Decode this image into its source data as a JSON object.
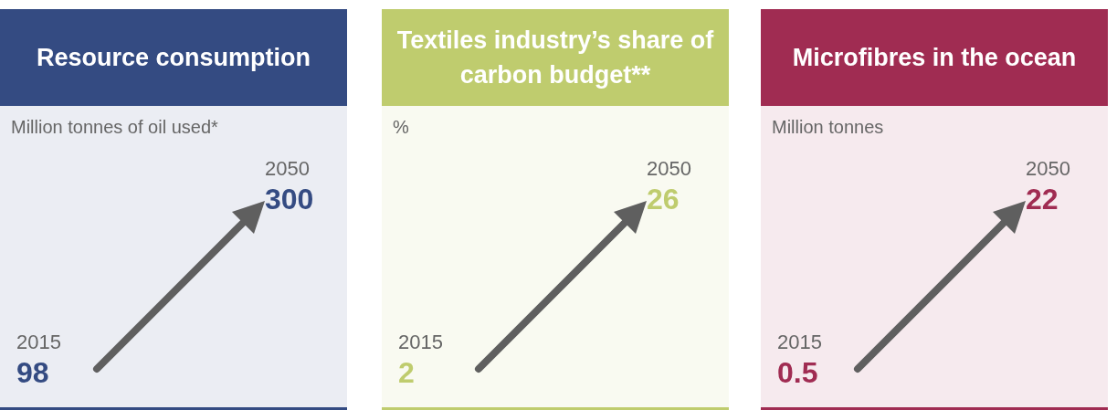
{
  "chart_data": [
    {
      "type": "other",
      "title": "Resource consumption",
      "subtitle": "Million tonnes of oil used*",
      "categories": [
        "2015",
        "2050"
      ],
      "values": [
        98,
        300
      ],
      "color": "#344b82",
      "data_labels": true
    },
    {
      "type": "other",
      "title": "Textiles industry’s share of carbon budget**",
      "subtitle": "%",
      "categories": [
        "2015",
        "2050"
      ],
      "values": [
        2,
        26
      ],
      "color": "#bfcc6e",
      "data_labels": true
    },
    {
      "type": "other",
      "title": "Microfibres in the ocean",
      "subtitle": "Million tonnes",
      "categories": [
        "2015",
        "2050"
      ],
      "values": [
        0.5,
        22
      ],
      "color": "#a02c52",
      "data_labels": true
    }
  ]
}
